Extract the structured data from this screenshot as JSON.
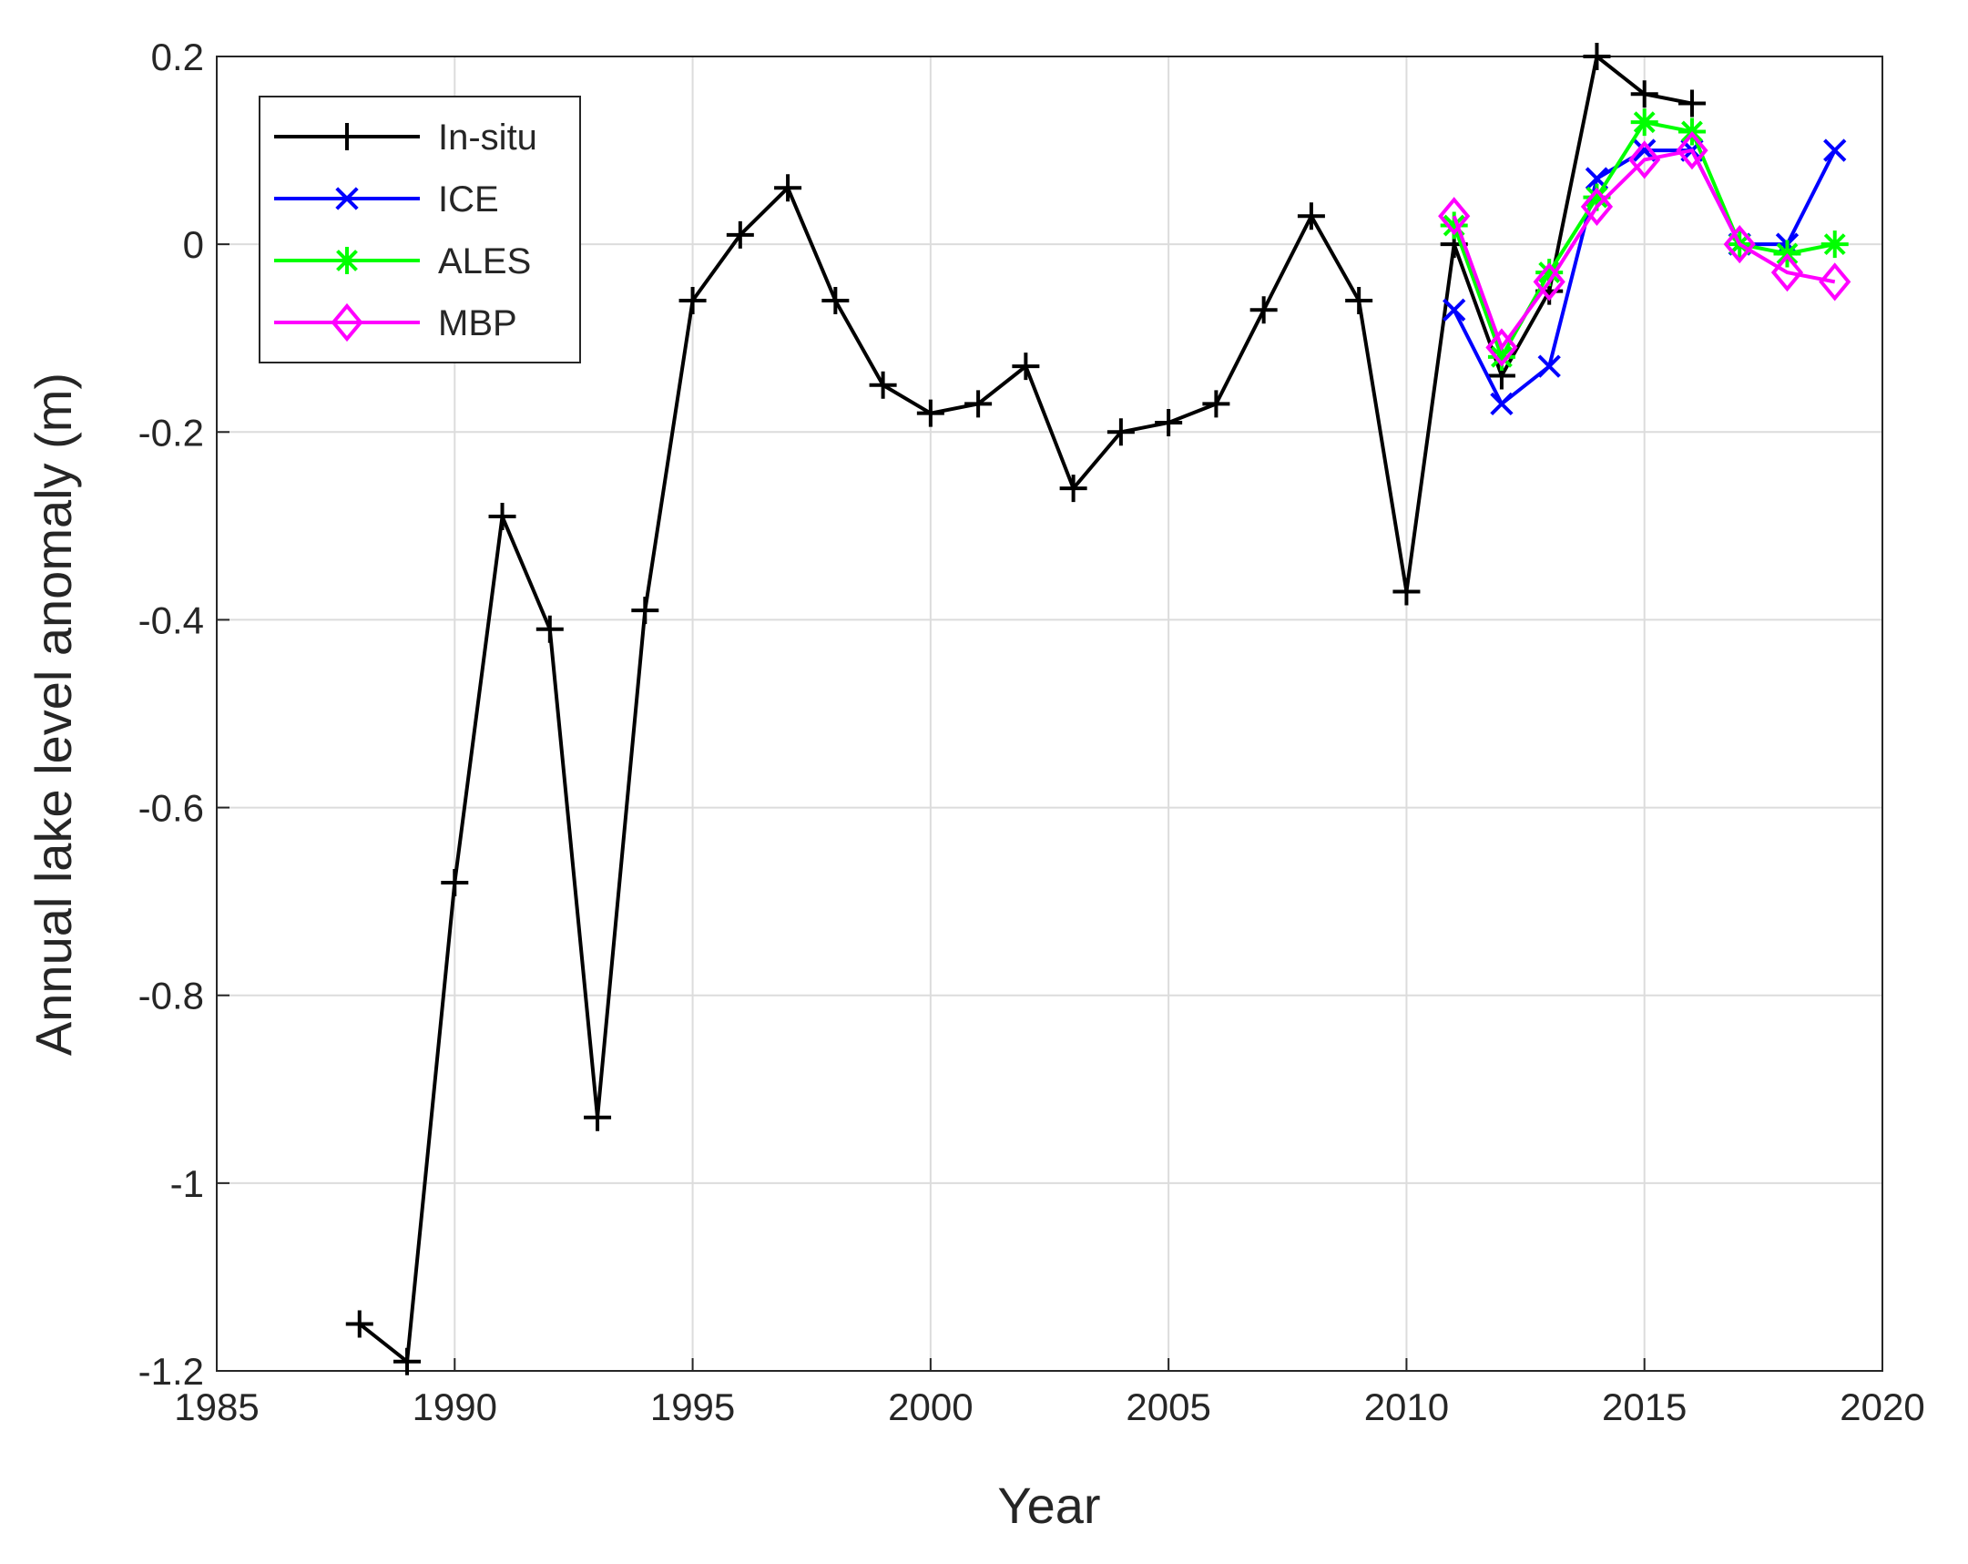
{
  "chart_data": {
    "type": "line",
    "x_label": "Year",
    "y_label": "Annual lake level anomaly (m)",
    "x": [
      1988,
      1989,
      1990,
      1991,
      1992,
      1993,
      1994,
      1995,
      1996,
      1997,
      1998,
      1999,
      2000,
      2001,
      2002,
      2003,
      2004,
      2005,
      2006,
      2007,
      2008,
      2009,
      2010,
      2011,
      2012,
      2013,
      2014,
      2015,
      2016,
      2017,
      2018,
      2019
    ],
    "series": [
      {
        "name": "In-situ",
        "color": "#000000",
        "marker": "plus",
        "values": [
          -1.15,
          -1.19,
          -0.68,
          -0.29,
          -0.41,
          -0.93,
          -0.39,
          -0.06,
          0.01,
          0.06,
          -0.06,
          -0.15,
          -0.18,
          -0.17,
          -0.13,
          -0.26,
          -0.2,
          -0.19,
          -0.17,
          -0.07,
          0.03,
          -0.06,
          -0.37,
          0.0,
          -0.14,
          -0.05,
          0.2,
          0.16,
          0.15,
          null,
          null,
          null
        ]
      },
      {
        "name": "ICE",
        "color": "#0000ff",
        "marker": "x",
        "values": [
          null,
          null,
          null,
          null,
          null,
          null,
          null,
          null,
          null,
          null,
          null,
          null,
          null,
          null,
          null,
          null,
          null,
          null,
          null,
          null,
          null,
          null,
          null,
          -0.07,
          -0.17,
          -0.13,
          0.07,
          0.1,
          0.1,
          0.0,
          0.0,
          0.1
        ]
      },
      {
        "name": "ALES",
        "color": "#00ff00",
        "marker": "asterisk",
        "values": [
          null,
          null,
          null,
          null,
          null,
          null,
          null,
          null,
          null,
          null,
          null,
          null,
          null,
          null,
          null,
          null,
          null,
          null,
          null,
          null,
          null,
          null,
          null,
          0.02,
          -0.12,
          -0.03,
          0.05,
          0.13,
          0.12,
          0.0,
          -0.01,
          0.0
        ]
      },
      {
        "name": "MBP",
        "color": "#ff00ff",
        "marker": "diamond",
        "values": [
          null,
          null,
          null,
          null,
          null,
          null,
          null,
          null,
          null,
          null,
          null,
          null,
          null,
          null,
          null,
          null,
          null,
          null,
          null,
          null,
          null,
          null,
          null,
          0.03,
          -0.11,
          -0.04,
          0.04,
          0.09,
          0.1,
          0.0,
          -0.03,
          -0.04
        ]
      }
    ],
    "xlim": [
      1985,
      2020
    ],
    "xticks": [
      1985,
      1990,
      1995,
      2000,
      2005,
      2010,
      2015,
      2020
    ],
    "ylim": [
      -1.2,
      0.2
    ],
    "yticks": [
      -1.2,
      -1,
      -0.8,
      -0.6,
      -0.4,
      -0.2,
      0,
      0.2
    ],
    "grid": true,
    "legend": "upper-left"
  }
}
